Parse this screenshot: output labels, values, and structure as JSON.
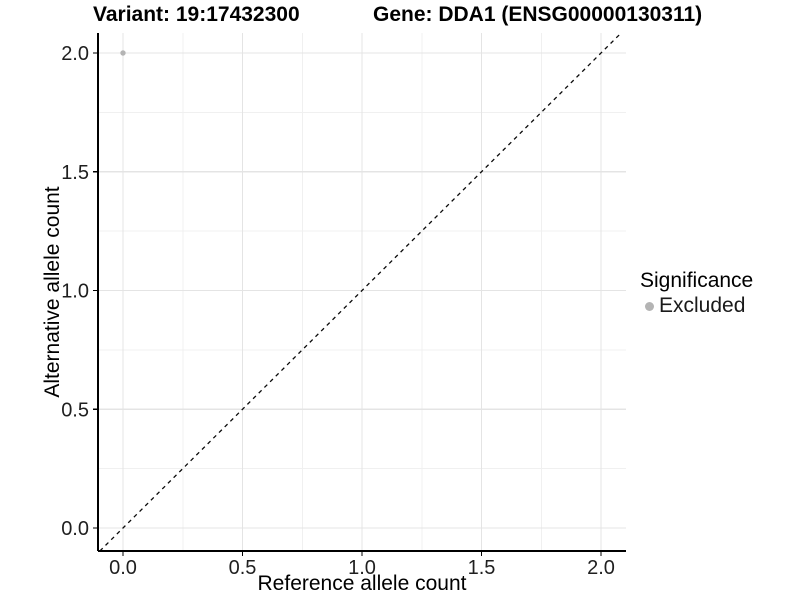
{
  "chart_data": {
    "type": "scatter",
    "title_left": "Variant: 19:17432300",
    "title_right": "Gene: DDA1 (ENSG00000130311)",
    "xlabel": "Reference allele count",
    "ylabel": "Alternative allele count",
    "xlim": [
      -0.105,
      2.105
    ],
    "ylim": [
      -0.097,
      2.084
    ],
    "x_ticks": [
      0.0,
      0.5,
      1.0,
      1.5,
      2.0
    ],
    "y_ticks": [
      0.0,
      0.5,
      1.0,
      1.5,
      2.0
    ],
    "x_tick_labels": [
      "0.0",
      "0.5",
      "1.0",
      "1.5",
      "2.0"
    ],
    "y_tick_labels": [
      "0.0",
      "0.5",
      "1.0",
      "1.5",
      "2.0"
    ],
    "x_minor_ticks": [
      0.25,
      0.75,
      1.25,
      1.75
    ],
    "y_minor_ticks": [
      0.25,
      0.75,
      1.25,
      1.75
    ],
    "grid": true,
    "points": [
      {
        "x": 0.0,
        "y": 2.0,
        "series": "Excluded"
      }
    ],
    "reference_line": {
      "type": "identity",
      "slope": 1,
      "intercept": 0,
      "style": "dashed"
    },
    "legend": {
      "position": "right",
      "title": "Significance",
      "entries": [
        {
          "label": "Excluded",
          "color": "#b4b4b4"
        }
      ]
    },
    "colors": {
      "background": "#ffffff",
      "point": "#b4b4b4",
      "grid_major": "#e4e4e4",
      "grid_minor": "#f0f0f0",
      "axis_line": "#000000",
      "tick_mark": "#000000",
      "tick_label": "#1f1f1f",
      "dashed_line": "#0a0a0a"
    }
  }
}
